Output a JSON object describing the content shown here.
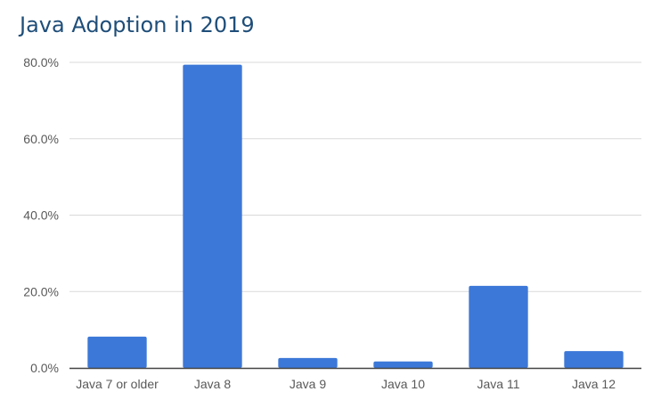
{
  "chart_data": {
    "type": "bar",
    "title": "Java Adoption in 2019",
    "xlabel": "",
    "ylabel": "",
    "categories": [
      "Java 7 or older",
      "Java 8",
      "Java 9",
      "Java 10",
      "Java 11",
      "Java 12"
    ],
    "values": [
      8.2,
      79.4,
      2.6,
      1.7,
      21.5,
      4.4
    ],
    "ylim": [
      0,
      80
    ],
    "yticks": [
      "0.0%",
      "20.0%",
      "40.0%",
      "60.0%",
      "80.0%"
    ],
    "ytick_values": [
      0,
      20,
      40,
      60,
      80
    ],
    "grid": true,
    "legend": "none",
    "bar_color": "#3c78d8",
    "grid_color": "#d9d9d9",
    "axis_color": "#444444"
  }
}
